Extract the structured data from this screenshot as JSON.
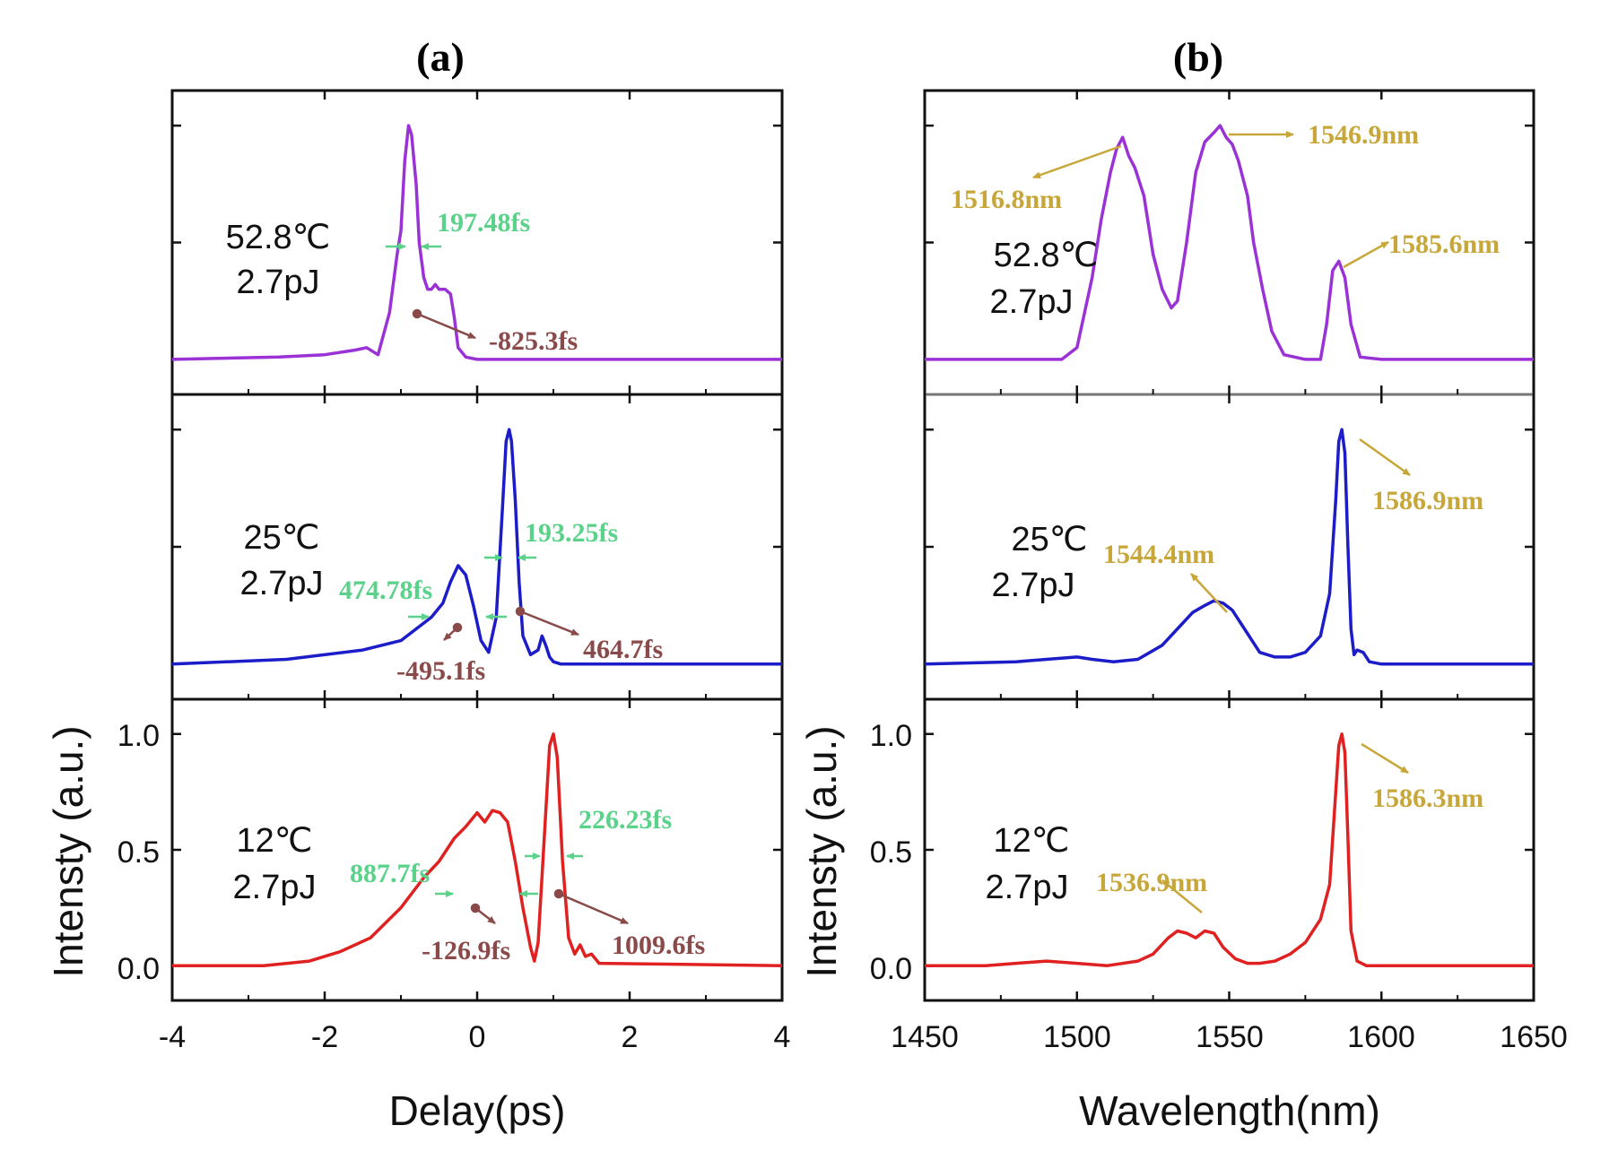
{
  "chart_data": [
    {
      "type": "line",
      "panel_title": "(a)",
      "xlabel": "Delay(ps)",
      "ylabel": "Intensty (a.u.)",
      "xlim": [
        -4,
        4
      ],
      "xticks": [
        -4,
        -2,
        0,
        2,
        4
      ],
      "xtick_labels": [
        "-4",
        "-2",
        "0",
        "2",
        "4"
      ],
      "ylim": [
        -0.15,
        1.15
      ],
      "yticks": [
        0.0,
        0.5,
        1.0
      ],
      "ytick_labels": [
        "0.0",
        "0.5",
        "1.0"
      ],
      "series": [
        {
          "name": "52.8℃",
          "color": "#9a32d6",
          "label_lines": [
            "52.8℃",
            "2.7pJ"
          ],
          "x": [
            -4,
            -2.6,
            -2.0,
            -1.6,
            -1.45,
            -1.3,
            -1.15,
            -1.05,
            -1.0,
            -0.95,
            -0.9,
            -0.86,
            -0.8,
            -0.76,
            -0.7,
            -0.65,
            -0.6,
            -0.55,
            -0.5,
            -0.42,
            -0.35,
            -0.3,
            -0.25,
            -0.15,
            0.0,
            4
          ],
          "y": [
            0,
            0.01,
            0.02,
            0.04,
            0.05,
            0.02,
            0.2,
            0.45,
            0.55,
            0.85,
            1.0,
            0.96,
            0.75,
            0.5,
            0.35,
            0.3,
            0.3,
            0.32,
            0.3,
            0.3,
            0.28,
            0.18,
            0.05,
            0.01,
            0,
            0
          ]
        },
        {
          "name": "25℃",
          "color": "#1c1cc8",
          "label_lines": [
            "25℃",
            "2.7pJ"
          ],
          "x": [
            -4,
            -2.5,
            -1.5,
            -1.0,
            -0.6,
            -0.45,
            -0.35,
            -0.25,
            -0.15,
            -0.05,
            0.05,
            0.15,
            0.25,
            0.33,
            0.38,
            0.42,
            0.45,
            0.5,
            0.55,
            0.6,
            0.7,
            0.8,
            0.85,
            0.9,
            0.95,
            1.0,
            1.1,
            4
          ],
          "y": [
            0,
            0.02,
            0.06,
            0.1,
            0.2,
            0.26,
            0.35,
            0.42,
            0.38,
            0.25,
            0.1,
            0.05,
            0.2,
            0.65,
            0.95,
            1.0,
            0.95,
            0.7,
            0.35,
            0.12,
            0.04,
            0.06,
            0.12,
            0.08,
            0.03,
            0.01,
            0,
            0
          ]
        },
        {
          "name": "12℃",
          "color": "#e02121",
          "label_lines": [
            "12℃",
            "2.7pJ"
          ],
          "x": [
            -4,
            -2.8,
            -2.2,
            -1.8,
            -1.4,
            -1.0,
            -0.7,
            -0.5,
            -0.3,
            -0.15,
            0.0,
            0.1,
            0.2,
            0.3,
            0.4,
            0.5,
            0.6,
            0.7,
            0.75,
            0.8,
            0.88,
            0.95,
            1.0,
            1.05,
            1.12,
            1.2,
            1.28,
            1.35,
            1.42,
            1.5,
            1.6,
            4
          ],
          "y": [
            0,
            0.0,
            0.02,
            0.06,
            0.12,
            0.25,
            0.38,
            0.45,
            0.55,
            0.6,
            0.66,
            0.62,
            0.67,
            0.66,
            0.62,
            0.45,
            0.25,
            0.08,
            0.02,
            0.1,
            0.55,
            0.95,
            1.0,
            0.9,
            0.45,
            0.12,
            0.05,
            0.09,
            0.04,
            0.05,
            0.01,
            0
          ]
        }
      ],
      "fwhm_labels": [
        "197.48fs",
        "193.25fs",
        "474.78fs",
        "226.23fs",
        "887.7fs"
      ],
      "peak_labels": [
        "-825.3fs",
        "464.7fs",
        "-495.1fs",
        "-126.9fs",
        "1009.6fs"
      ]
    },
    {
      "type": "line",
      "panel_title": "(b)",
      "xlabel": "Wavelength(nm)",
      "ylabel": "Intensty (a.u.)",
      "xlim": [
        1450,
        1650
      ],
      "xticks": [
        1450,
        1500,
        1550,
        1600,
        1650
      ],
      "xtick_labels": [
        "1450",
        "1500",
        "1550",
        "1600",
        "1650"
      ],
      "ylim": [
        -0.15,
        1.15
      ],
      "yticks": [
        0.0,
        0.5,
        1.0
      ],
      "ytick_labels": [
        "0.0",
        "0.5",
        "1.0"
      ],
      "series": [
        {
          "name": "52.8℃",
          "color": "#9a32d6",
          "label_lines": [
            "52.8℃",
            "2.7pJ"
          ],
          "x": [
            1450,
            1495,
            1500,
            1505,
            1508,
            1511,
            1513,
            1515,
            1517,
            1519,
            1522,
            1525,
            1528,
            1531,
            1533,
            1536,
            1539,
            1542,
            1545,
            1547,
            1549,
            1551,
            1553,
            1556,
            1558,
            1561,
            1564,
            1568,
            1575,
            1580,
            1582,
            1584,
            1586,
            1588,
            1590,
            1593,
            1600,
            1650
          ],
          "y": [
            0,
            0,
            0.05,
            0.35,
            0.6,
            0.8,
            0.9,
            0.95,
            0.87,
            0.82,
            0.7,
            0.45,
            0.3,
            0.22,
            0.25,
            0.5,
            0.8,
            0.93,
            0.97,
            1.0,
            0.95,
            0.92,
            0.85,
            0.7,
            0.5,
            0.3,
            0.12,
            0.02,
            0,
            0,
            0.15,
            0.38,
            0.42,
            0.35,
            0.15,
            0.01,
            0,
            0
          ]
        },
        {
          "name": "25℃",
          "color": "#1c1cc8",
          "label_lines": [
            "25℃",
            "2.7pJ"
          ],
          "x": [
            1450,
            1480,
            1490,
            1500,
            1505,
            1512,
            1520,
            1528,
            1533,
            1538,
            1542,
            1545,
            1548,
            1551,
            1555,
            1560,
            1565,
            1570,
            1575,
            1580,
            1583,
            1585,
            1586,
            1587,
            1588,
            1589,
            1590,
            1591,
            1592,
            1594,
            1596,
            1600,
            1650
          ],
          "y": [
            0,
            0.01,
            0.02,
            0.03,
            0.02,
            0.01,
            0.02,
            0.08,
            0.15,
            0.22,
            0.25,
            0.27,
            0.26,
            0.23,
            0.15,
            0.05,
            0.03,
            0.03,
            0.05,
            0.12,
            0.3,
            0.7,
            0.95,
            1.0,
            0.9,
            0.5,
            0.15,
            0.04,
            0.06,
            0.05,
            0.01,
            0,
            0
          ]
        },
        {
          "name": "12℃",
          "color": "#e02121",
          "label_lines": [
            "12℃",
            "2.7pJ"
          ],
          "x": [
            1450,
            1470,
            1480,
            1490,
            1500,
            1510,
            1520,
            1525,
            1530,
            1533,
            1536,
            1539,
            1542,
            1545,
            1548,
            1552,
            1556,
            1560,
            1565,
            1570,
            1575,
            1580,
            1583,
            1585,
            1586,
            1587,
            1588,
            1589,
            1590,
            1592,
            1595,
            1600,
            1650
          ],
          "y": [
            0,
            0,
            0.01,
            0.02,
            0.01,
            0.0,
            0.02,
            0.05,
            0.12,
            0.15,
            0.14,
            0.12,
            0.15,
            0.14,
            0.08,
            0.03,
            0.01,
            0.01,
            0.02,
            0.05,
            0.1,
            0.2,
            0.35,
            0.75,
            0.95,
            1.0,
            0.92,
            0.55,
            0.15,
            0.02,
            0,
            0,
            0
          ]
        }
      ],
      "peak_wavelength_labels": [
        "1546.9nm",
        "1516.8nm",
        "1585.6nm",
        "1586.9nm",
        "1544.4nm",
        "1586.3nm",
        "1536.9nm"
      ]
    }
  ]
}
